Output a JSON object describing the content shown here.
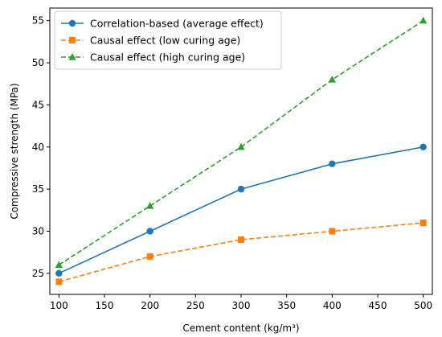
{
  "chart_data": {
    "type": "line",
    "title": "",
    "xlabel": "Cement content (kg/m³)",
    "ylabel": "Compressive strength (MPa)",
    "xlim": [
      90,
      510
    ],
    "ylim": [
      22.5,
      56.5
    ],
    "xticks": [
      100,
      150,
      200,
      250,
      300,
      350,
      400,
      450,
      500
    ],
    "yticks": [
      25,
      30,
      35,
      40,
      45,
      50,
      55
    ],
    "grid": false,
    "legend": "top-left",
    "x": [
      100,
      200,
      300,
      400,
      500
    ],
    "series": [
      {
        "name": "Correlation-based (average effect)",
        "values": [
          25,
          30,
          35,
          38,
          40
        ],
        "color": "#1f77b4",
        "line_style": "solid",
        "marker": "circle"
      },
      {
        "name": "Causal effect (low curing age)",
        "values": [
          24,
          27,
          29,
          30,
          31
        ],
        "color": "#ff7f0e",
        "line_style": "dashed",
        "marker": "square"
      },
      {
        "name": "Causal effect (high curing age)",
        "values": [
          26,
          33,
          40,
          48,
          55
        ],
        "color": "#2ca02c",
        "line_style": "dashed",
        "marker": "triangle"
      }
    ]
  }
}
